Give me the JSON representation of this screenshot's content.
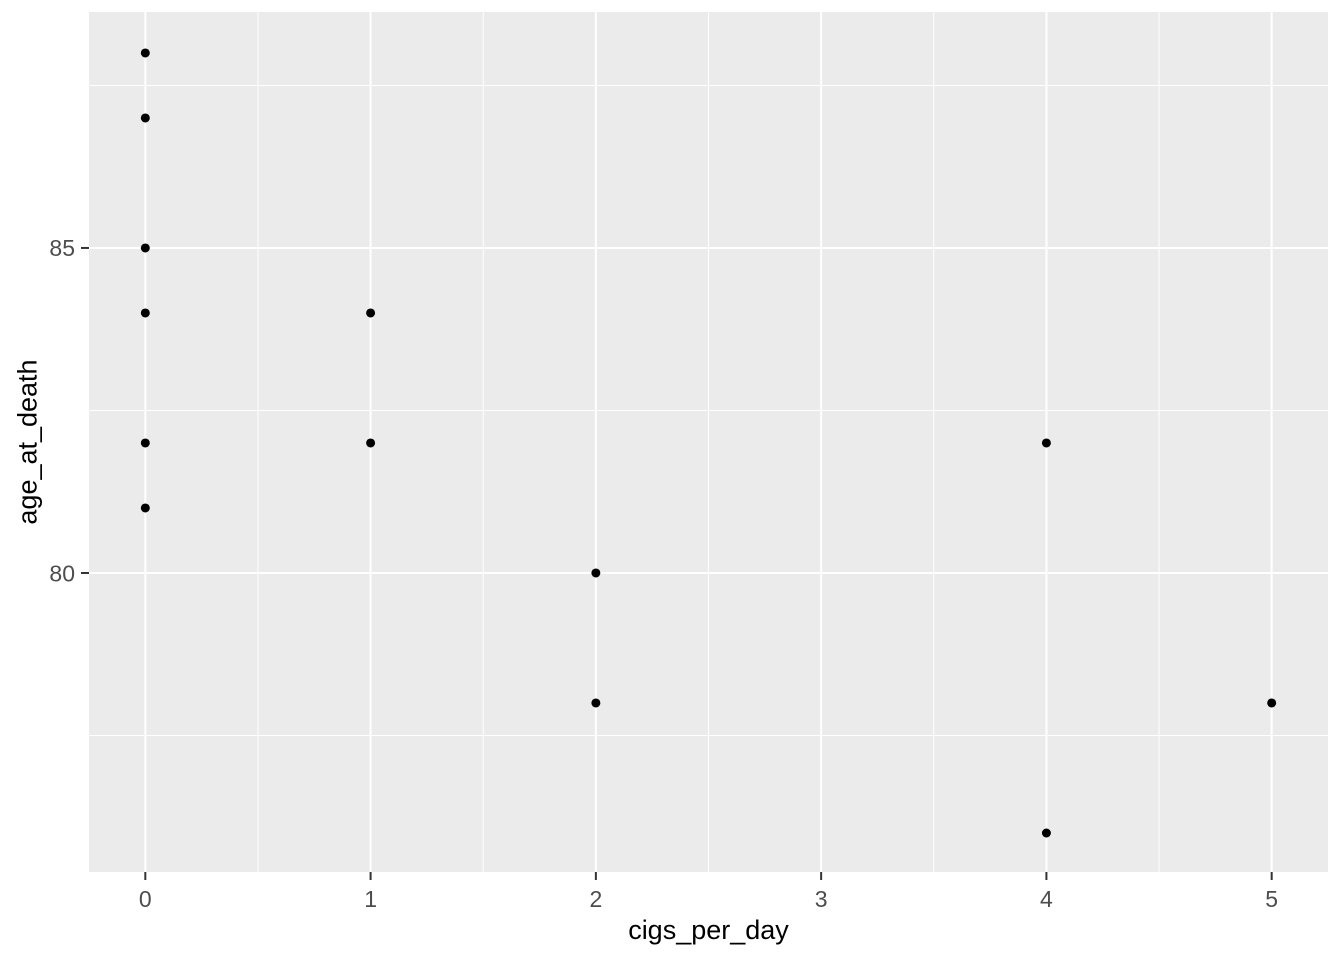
{
  "chart_data": {
    "type": "scatter",
    "title": "",
    "xlabel": "cigs_per_day",
    "ylabel": "age_at_death",
    "x_ticks": {
      "values": [
        0,
        1,
        2,
        3,
        4,
        5
      ],
      "labels": [
        "0",
        "1",
        "2",
        "3",
        "4",
        "5"
      ]
    },
    "y_ticks": {
      "values": [
        80,
        85
      ],
      "labels": [
        "80",
        "85"
      ]
    },
    "x_minor": [
      0.5,
      1.5,
      2.5,
      3.5,
      4.5
    ],
    "y_minor": [
      77.5,
      82.5,
      87.5
    ],
    "xlim": [
      -0.25,
      5.25
    ],
    "ylim": [
      75.4,
      88.63
    ],
    "grid": "major-and-minor",
    "legend": "none",
    "points": [
      {
        "x": 0,
        "y": 88
      },
      {
        "x": 0,
        "y": 87
      },
      {
        "x": 0,
        "y": 85
      },
      {
        "x": 0,
        "y": 84
      },
      {
        "x": 0,
        "y": 82
      },
      {
        "x": 0,
        "y": 81
      },
      {
        "x": 1,
        "y": 84
      },
      {
        "x": 1,
        "y": 82
      },
      {
        "x": 2,
        "y": 80
      },
      {
        "x": 2,
        "y": 78
      },
      {
        "x": 4,
        "y": 82
      },
      {
        "x": 4,
        "y": 76
      },
      {
        "x": 5,
        "y": 78
      }
    ],
    "colors": {
      "background": "#FFFFFF",
      "panel_bg": "#EBEBEB",
      "grid": "#FFFFFF",
      "point": "#000000",
      "tick_label": "#4D4D4D",
      "axis_title": "#000000",
      "tick_mark": "#333333"
    }
  }
}
